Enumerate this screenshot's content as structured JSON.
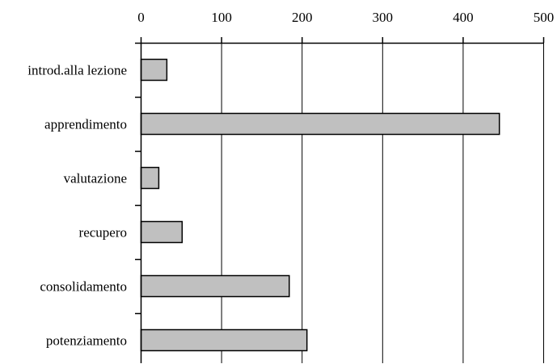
{
  "chart_data": {
    "type": "bar",
    "orientation": "horizontal",
    "categories": [
      "introd.alla lezione",
      "apprendimento",
      "valutazione",
      "recupero",
      "consolidamento",
      "potenziamento"
    ],
    "values": [
      32,
      445,
      22,
      51,
      184,
      206
    ],
    "xlim": [
      0,
      500
    ],
    "xticks": [
      "0",
      "100",
      "200",
      "300",
      "400",
      "500"
    ],
    "tick_values": [
      0,
      100,
      200,
      300,
      400,
      500
    ],
    "x_axis_position": "top",
    "grid": true,
    "bar_color": "#c0c0c0",
    "bar_edge_color": "#000000",
    "title": "",
    "xlabel": "",
    "ylabel": ""
  }
}
